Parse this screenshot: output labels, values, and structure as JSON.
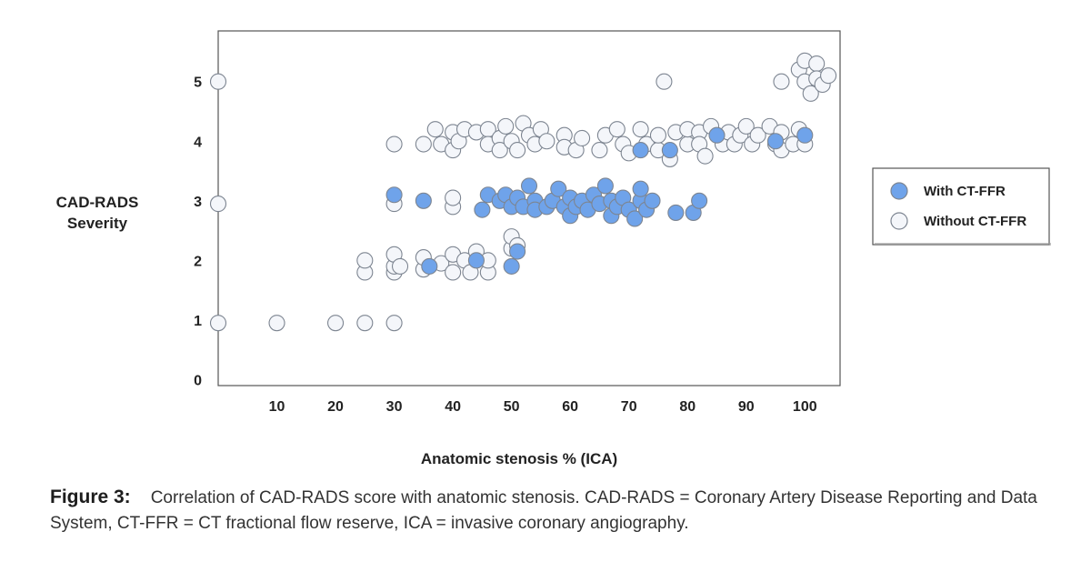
{
  "chart_data": {
    "type": "scatter",
    "xlabel": "Anatomic stenosis % (ICA)",
    "ylabel_lines": [
      "CAD-RADS",
      "Severity"
    ],
    "xlim": [
      0,
      106
    ],
    "ylim": [
      -0.1,
      5.85
    ],
    "xticks": [
      10,
      20,
      30,
      40,
      50,
      60,
      70,
      80,
      90,
      100
    ],
    "yticks": [
      0,
      1,
      2,
      3,
      4,
      5
    ],
    "grid": false,
    "legend_position": "right",
    "series": [
      {
        "name": "With CT-FFR",
        "color": "#6fa3ea",
        "points": [
          [
            30,
            3.1
          ],
          [
            35,
            3.0
          ],
          [
            36,
            1.9
          ],
          [
            44,
            2.0
          ],
          [
            45,
            2.85
          ],
          [
            46,
            3.1
          ],
          [
            48,
            3.0
          ],
          [
            49,
            3.1
          ],
          [
            50,
            1.9
          ],
          [
            50,
            2.9
          ],
          [
            51,
            3.05
          ],
          [
            51,
            2.15
          ],
          [
            52,
            2.9
          ],
          [
            53,
            3.25
          ],
          [
            54,
            3.0
          ],
          [
            54,
            2.85
          ],
          [
            56,
            2.9
          ],
          [
            57,
            3.0
          ],
          [
            58,
            3.2
          ],
          [
            59,
            2.9
          ],
          [
            60,
            3.05
          ],
          [
            60,
            2.75
          ],
          [
            61,
            2.9
          ],
          [
            62,
            3.0
          ],
          [
            63,
            2.85
          ],
          [
            64,
            3.1
          ],
          [
            65,
            2.95
          ],
          [
            66,
            3.25
          ],
          [
            67,
            3.0
          ],
          [
            67,
            2.75
          ],
          [
            68,
            2.9
          ],
          [
            69,
            3.05
          ],
          [
            70,
            2.85
          ],
          [
            71,
            2.7
          ],
          [
            72,
            3.0
          ],
          [
            72,
            3.2
          ],
          [
            73,
            2.85
          ],
          [
            74,
            3.0
          ],
          [
            72,
            3.85
          ],
          [
            77,
            3.85
          ],
          [
            78,
            2.8
          ],
          [
            81,
            2.8
          ],
          [
            82,
            3.0
          ],
          [
            85,
            4.1
          ],
          [
            95,
            4.0
          ],
          [
            100,
            4.1
          ]
        ]
      },
      {
        "name": "Without CT-FFR",
        "color": "#f4f6fa",
        "points": [
          [
            0,
            5.0
          ],
          [
            0,
            2.95
          ],
          [
            0,
            0.95
          ],
          [
            10,
            0.95
          ],
          [
            20,
            0.95
          ],
          [
            25,
            0.95
          ],
          [
            30,
            0.95
          ],
          [
            25,
            1.8
          ],
          [
            25,
            2.0
          ],
          [
            30,
            1.8
          ],
          [
            30,
            1.9
          ],
          [
            30,
            2.1
          ],
          [
            31,
            1.9
          ],
          [
            35,
            1.85
          ],
          [
            35,
            2.05
          ],
          [
            38,
            1.95
          ],
          [
            40,
            1.8
          ],
          [
            40,
            2.1
          ],
          [
            42,
            2.0
          ],
          [
            43,
            1.8
          ],
          [
            44,
            2.15
          ],
          [
            46,
            1.8
          ],
          [
            46,
            2.0
          ],
          [
            50,
            2.2
          ],
          [
            50,
            2.4
          ],
          [
            51,
            2.25
          ],
          [
            30,
            2.95
          ],
          [
            30,
            3.95
          ],
          [
            40,
            2.9
          ],
          [
            40,
            3.05
          ],
          [
            35,
            3.95
          ],
          [
            37,
            4.2
          ],
          [
            38,
            3.95
          ],
          [
            40,
            3.85
          ],
          [
            40,
            4.15
          ],
          [
            41,
            4.0
          ],
          [
            42,
            4.2
          ],
          [
            44,
            4.15
          ],
          [
            46,
            4.2
          ],
          [
            46,
            3.95
          ],
          [
            48,
            4.05
          ],
          [
            48,
            3.85
          ],
          [
            49,
            4.25
          ],
          [
            50,
            4.0
          ],
          [
            51,
            3.85
          ],
          [
            52,
            4.3
          ],
          [
            53,
            4.1
          ],
          [
            54,
            3.95
          ],
          [
            55,
            4.2
          ],
          [
            56,
            4.0
          ],
          [
            59,
            4.1
          ],
          [
            59,
            3.9
          ],
          [
            61,
            3.85
          ],
          [
            62,
            4.05
          ],
          [
            65,
            3.85
          ],
          [
            66,
            4.1
          ],
          [
            68,
            4.2
          ],
          [
            69,
            3.95
          ],
          [
            70,
            3.8
          ],
          [
            72,
            4.2
          ],
          [
            73,
            3.95
          ],
          [
            75,
            3.85
          ],
          [
            75,
            4.1
          ],
          [
            76,
            5.0
          ],
          [
            77,
            3.7
          ],
          [
            78,
            4.15
          ],
          [
            80,
            3.95
          ],
          [
            80,
            4.2
          ],
          [
            82,
            4.15
          ],
          [
            82,
            3.95
          ],
          [
            83,
            3.75
          ],
          [
            84,
            4.25
          ],
          [
            86,
            3.95
          ],
          [
            87,
            4.15
          ],
          [
            88,
            3.95
          ],
          [
            89,
            4.1
          ],
          [
            90,
            4.25
          ],
          [
            91,
            3.95
          ],
          [
            92,
            4.1
          ],
          [
            94,
            4.25
          ],
          [
            95,
            3.95
          ],
          [
            96,
            3.85
          ],
          [
            96,
            4.15
          ],
          [
            96,
            5.0
          ],
          [
            98,
            3.95
          ],
          [
            99,
            4.2
          ],
          [
            99,
            5.2
          ],
          [
            100,
            3.95
          ],
          [
            100,
            5.0
          ],
          [
            100,
            5.35
          ],
          [
            101,
            4.8
          ],
          [
            102,
            5.3
          ],
          [
            102,
            5.05
          ],
          [
            103,
            4.95
          ],
          [
            104,
            5.1
          ]
        ]
      }
    ]
  },
  "caption": {
    "label": "Figure 3:",
    "text": "Correlation of CAD-RADS score with anatomic stenosis. CAD-RADS = Coronary Artery Disease Reporting and Data System, CT-FFR = CT fractional flow reserve, ICA = invasive coronary angiography."
  }
}
